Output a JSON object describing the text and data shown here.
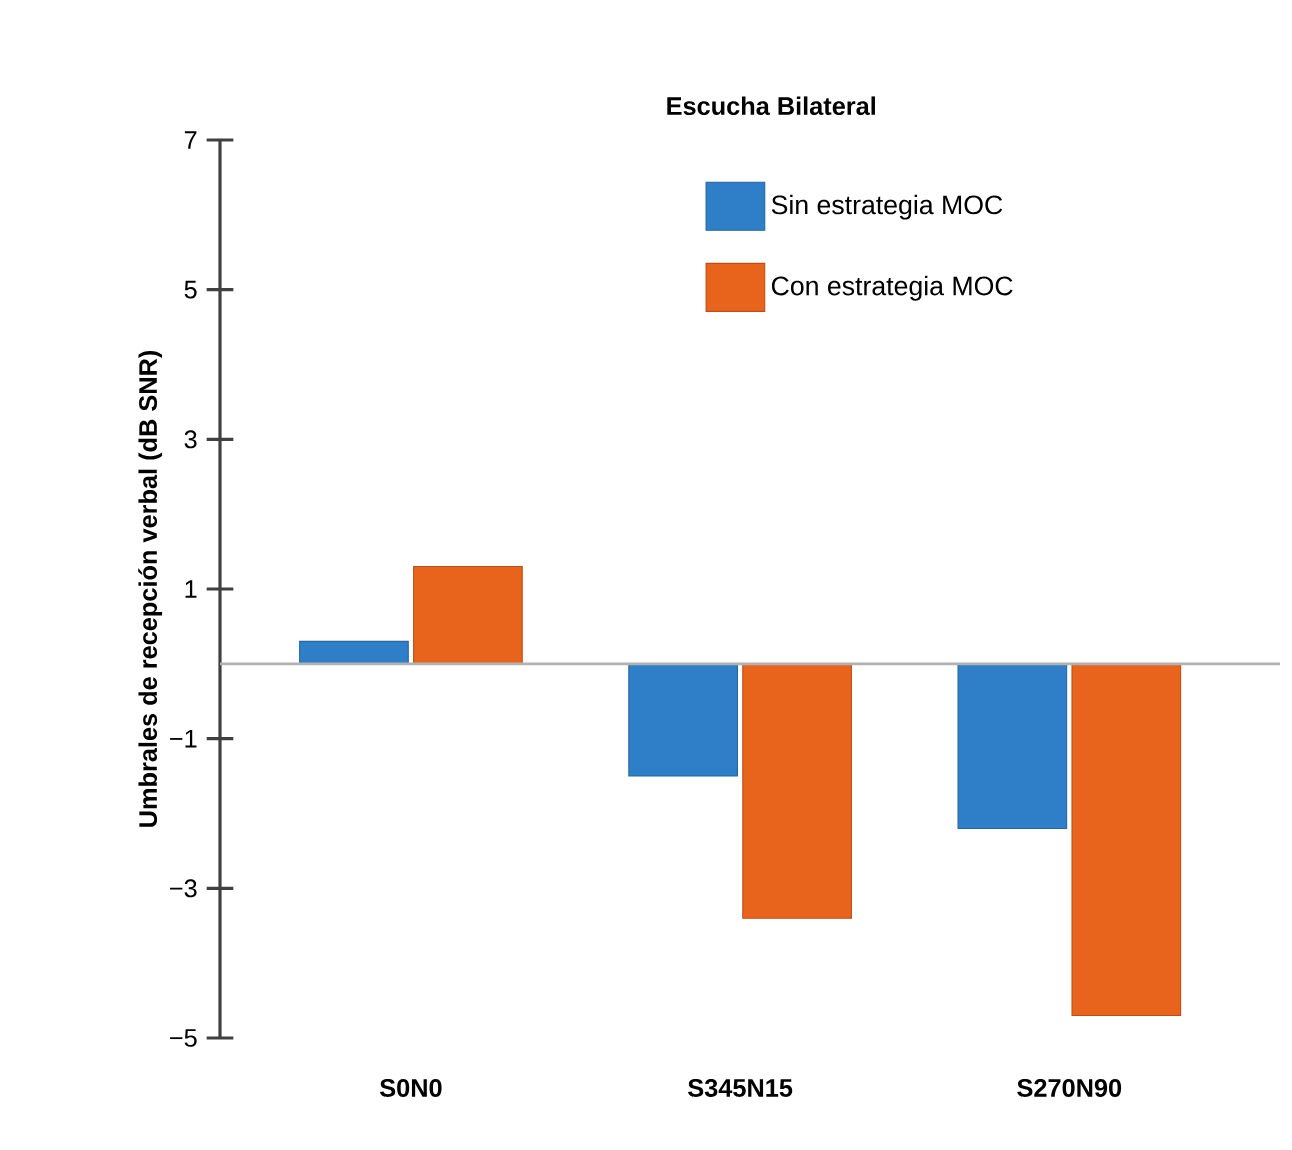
{
  "chart_data": {
    "type": "bar",
    "title": "Escucha Bilateral",
    "ylabel": "Umbrales de recepción verbal (dB SNR)",
    "categories": [
      "S0N0",
      "S345N15",
      "S270N90"
    ],
    "series": [
      {
        "name": "Sin estrategia MOC",
        "color": "#2e7fc8",
        "values": [
          0.3,
          -1.5,
          -2.2
        ]
      },
      {
        "name": "Con estrategia MOC",
        "color": "#e8641c",
        "values": [
          1.3,
          -3.4,
          -4.7
        ]
      }
    ],
    "ylim": [
      -5,
      7
    ],
    "yticks": [
      {
        "value": -5,
        "label": "−5"
      },
      {
        "value": -3,
        "label": "−3"
      },
      {
        "value": -1,
        "label": "−1"
      },
      1,
      3,
      5,
      7
    ],
    "legend": "top right",
    "grid": false
  }
}
